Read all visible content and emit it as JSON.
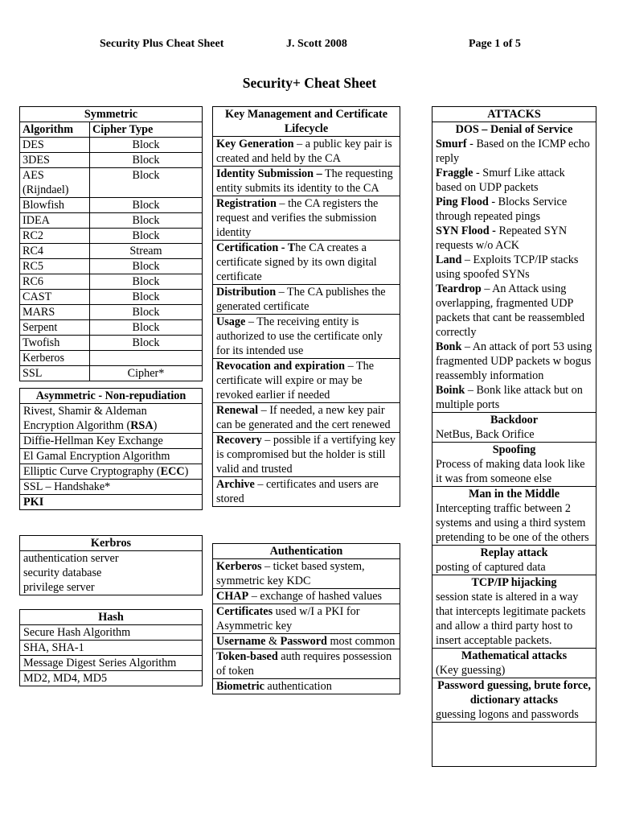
{
  "header": {
    "left": "Security Plus Cheat Sheet",
    "center": "J. Scott   2008",
    "right": "Page 1 of  5"
  },
  "title": "Security+ Cheat Sheet",
  "symmetric": {
    "title": "Symmetric",
    "columns": [
      "Algorithm",
      "Cipher Type"
    ],
    "rows": [
      [
        "DES",
        "Block"
      ],
      [
        "3DES",
        "Block"
      ],
      [
        "AES (Rijndael)",
        "Block"
      ],
      [
        "Blowfish",
        "Block"
      ],
      [
        "IDEA",
        "Block"
      ],
      [
        "RC2",
        "Block"
      ],
      [
        "RC4",
        "Stream"
      ],
      [
        "RC5",
        "Block"
      ],
      [
        "RC6",
        "Block"
      ],
      [
        "CAST",
        "Block"
      ],
      [
        "MARS",
        "Block"
      ],
      [
        "Serpent",
        "Block"
      ],
      [
        "Twofish",
        "Block"
      ],
      [
        "Kerberos",
        ""
      ],
      [
        "SSL",
        "Cipher*"
      ]
    ]
  },
  "asymmetric": {
    "title": "Asymmetric - Non-repudiation",
    "rows": [
      [
        {
          "t": "Rivest, Shamir & Aldeman Encryption Algorithm ("
        },
        {
          "b": "RSA"
        },
        {
          "t": ")"
        }
      ],
      [
        {
          "t": "Diffie-Hellman Key Exchange"
        }
      ],
      [
        {
          "t": "El Gamal Encryption Algorithm"
        }
      ],
      [
        {
          "t": "Elliptic Curve Cryptography ("
        },
        {
          "b": "ECC"
        },
        {
          "t": ")"
        }
      ],
      [
        {
          "t": "SSL – Handshake*"
        }
      ],
      [
        {
          "b": "PKI"
        }
      ]
    ]
  },
  "kerbros": {
    "title": "Kerbros",
    "rows": [
      [
        {
          "t": "authentication server"
        },
        {
          "br": 1
        },
        {
          "t": "security database"
        },
        {
          "br": 1
        },
        {
          "t": "privilege server"
        }
      ]
    ]
  },
  "hash": {
    "title": "Hash",
    "rows": [
      [
        {
          "t": "Secure Hash Algorithm"
        }
      ],
      [
        {
          "t": "SHA, SHA-1"
        }
      ],
      [
        {
          "t": "Message Digest Series Algorithm"
        }
      ],
      [
        {
          "t": "MD2, MD4, MD5"
        }
      ]
    ]
  },
  "keymgmt": {
    "title": "Key Management and Certificate Lifecycle",
    "rows": [
      [
        {
          "b": "Key Generation"
        },
        {
          "t": " – a public key pair is created and held by the CA"
        }
      ],
      [
        {
          "b": "Identity Submission –"
        },
        {
          "t": " The requesting entity submits its identity to the CA"
        }
      ],
      [
        {
          "b": "Registration"
        },
        {
          "t": " – the CA registers the request and verifies the submission identity"
        }
      ],
      [
        {
          "b": "Certification  - "
        },
        {
          "b": "T"
        },
        {
          "t": "he CA creates a certificate signed by its own digital certificate"
        }
      ],
      [
        {
          "b": "Distribution"
        },
        {
          "t": " – The CA publishes the generated certificate"
        }
      ],
      [
        {
          "b": "Usage"
        },
        {
          "t": " – The receiving entity is authorized to use the certificate only for its intended use"
        }
      ],
      [
        {
          "b": "Revocation and expiration"
        },
        {
          "t": " – The certificate will expire or may be revoked earlier if needed"
        }
      ],
      [
        {
          "b": "Renewal"
        },
        {
          "t": " – If needed, a new key pair can be generated and the cert renewed"
        }
      ],
      [
        {
          "b": "Recovery"
        },
        {
          "t": " – possible if a vertifying key is compromised but the holder is still valid and trusted"
        }
      ],
      [
        {
          "b": "Archive"
        },
        {
          "t": " – certificates and users are stored"
        }
      ]
    ]
  },
  "authentication": {
    "title": "Authentication",
    "rows": [
      [
        {
          "b": "Kerberos"
        },
        {
          "t": " – ticket based system, symmetric key KDC"
        }
      ],
      [
        {
          "b": "CHAP"
        },
        {
          "t": " – exchange of hashed values"
        }
      ],
      [
        {
          "b": "Certificates"
        },
        {
          "t": " used w/I a PKI for Asymmetric key"
        }
      ],
      [
        {
          "b": "Username"
        },
        {
          "t": " & "
        },
        {
          "b": "Password"
        },
        {
          "t": " most common"
        }
      ],
      [
        {
          "b": "Token-based"
        },
        {
          "t": " auth requires possession of token"
        }
      ],
      [
        {
          "b": "Biometric"
        },
        {
          "t": " authentication"
        }
      ]
    ]
  },
  "attacks": {
    "title": "ATTACKS",
    "rows": [
      [
        {
          "bc": "DOS – Denial of Service"
        },
        {
          "b": "Smurf"
        },
        {
          "t": " - Based on the ICMP echo reply"
        },
        {
          "br": 1
        },
        {
          "b": "Fraggle"
        },
        {
          "t": " - Smurf Like attack based on UDP packets"
        },
        {
          "br": 1
        },
        {
          "b": "Ping Flood"
        },
        {
          "t": " - Blocks Service through repeated pings"
        },
        {
          "br": 1
        },
        {
          "b": "SYN Flood - "
        },
        {
          "t": "Repeated SYN requests w/o ACK"
        },
        {
          "br": 1
        },
        {
          "b": "Land"
        },
        {
          "t": " – Exploits TCP/IP stacks using spoofed SYNs"
        },
        {
          "br": 1
        },
        {
          "b": "Teardrop"
        },
        {
          "t": " – An Attack using overlapping, fragmented UDP packets that cant be reassembled correctly"
        },
        {
          "br": 1
        },
        {
          "b": "Bonk"
        },
        {
          "t": " – An attack of port 53 using fragmented UDP packets w bogus reassembly information"
        },
        {
          "br": 1
        },
        {
          "b": "Boink"
        },
        {
          "t": " – Bonk like attack but on multiple ports"
        }
      ],
      [
        {
          "bc": "Backdoor"
        },
        {
          "t": "NetBus, Back Orifice"
        }
      ],
      [
        {
          "bc": "Spoofing"
        },
        {
          "t": "Process of making data look like it was from someone else"
        }
      ],
      [
        {
          "bc": "Man in the Middle"
        },
        {
          "t": "Intercepting traffic between 2 systems and using a third system pretending to be one of the others"
        }
      ],
      [
        {
          "bc": "Replay attack"
        },
        {
          "t": "posting of captured data"
        }
      ],
      [
        {
          "bc": "TCP/IP hijacking"
        },
        {
          "t": "session state is altered in a way that intercepts legitimate packets and allow a third party host to insert acceptable packets."
        }
      ],
      [
        {
          "bc": "Mathematical attacks"
        },
        {
          "t": "(Key guessing)"
        }
      ],
      [
        {
          "bc": "Password guessing, brute force, dictionary attacks"
        },
        {
          "t": "guessing logons and passwords"
        }
      ],
      [
        {
          "t": ""
        }
      ]
    ]
  }
}
